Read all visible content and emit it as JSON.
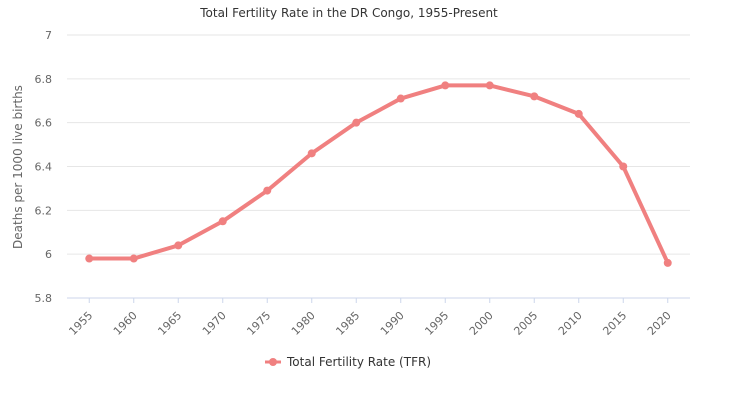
{
  "chart_data": {
    "type": "line",
    "title": "Total Fertility Rate in the DR Congo, 1955-Present",
    "xlabel": "",
    "ylabel": "Deaths per 1000 live births",
    "categories": [
      "1955",
      "1960",
      "1965",
      "1970",
      "1975",
      "1980",
      "1985",
      "1990",
      "1995",
      "2000",
      "2005",
      "2010",
      "2015",
      "2020"
    ],
    "series": [
      {
        "name": "Total Fertility Rate (TFR)",
        "values": [
          5.98,
          5.98,
          6.04,
          6.15,
          6.29,
          6.46,
          6.6,
          6.71,
          6.77,
          6.77,
          6.72,
          6.64,
          6.4,
          5.96
        ]
      }
    ],
    "ylim": [
      5.8,
      7
    ],
    "yticks": [
      "5.8",
      "6",
      "6.2",
      "6.4",
      "6.6",
      "6.8",
      "7"
    ],
    "grid": true,
    "legend_position": "bottom-center",
    "colors": {
      "series": "#f08080",
      "grid": "#e6e6e6",
      "axis": "#ccd6eb"
    }
  }
}
